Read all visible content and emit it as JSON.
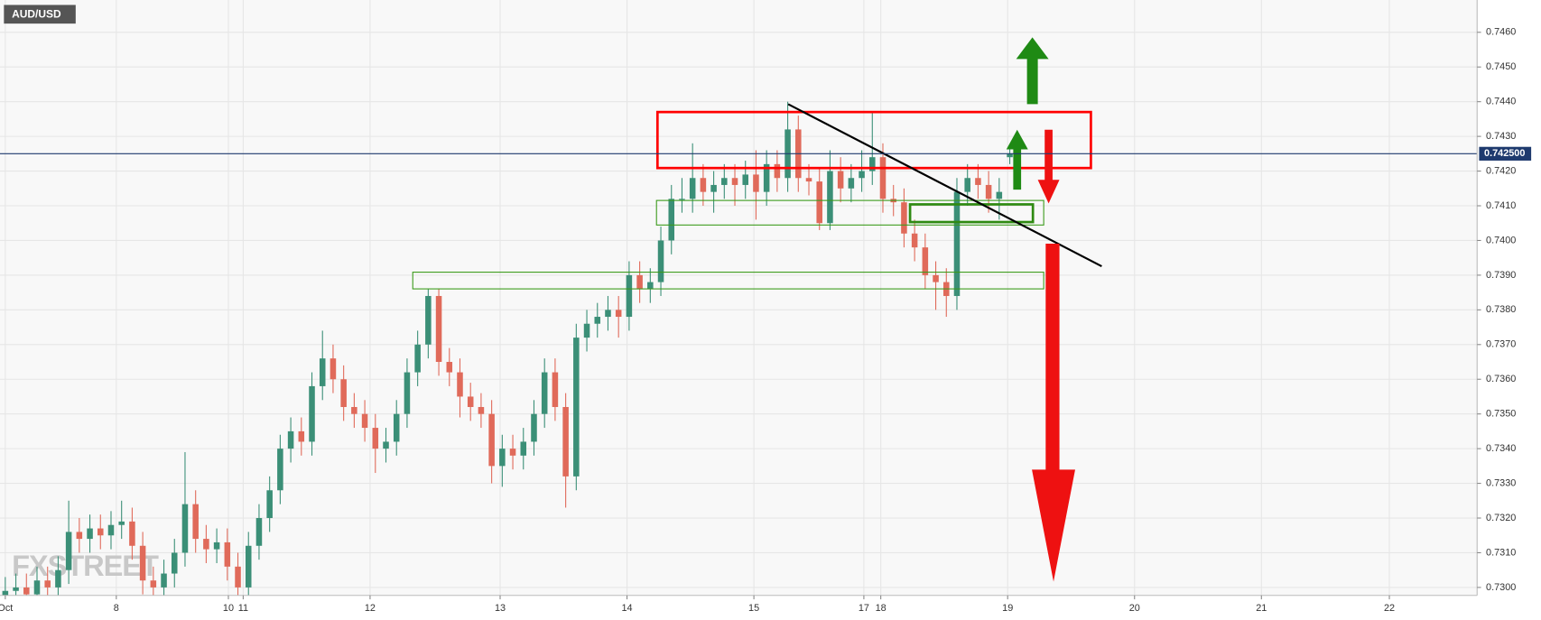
{
  "chart_data": {
    "type": "candlestick",
    "title": "AUD/USD",
    "watermark": "FXSTREET",
    "up_color": "#3b8f77",
    "down_color": "#e06a5a",
    "grid": true,
    "last_price": {
      "value": 0.7425,
      "label": "0.742500"
    },
    "x": [
      0,
      1,
      2,
      3,
      4,
      5,
      6,
      7,
      8,
      9,
      10,
      11,
      12,
      13,
      14,
      15,
      16,
      17,
      18,
      19,
      20,
      21,
      22,
      23,
      24,
      25,
      26,
      27,
      28,
      29,
      30,
      31,
      32,
      33,
      34,
      35,
      36,
      37,
      38,
      39,
      40,
      41,
      42,
      43,
      44,
      45,
      46,
      47,
      48,
      49,
      50,
      51,
      52,
      53,
      54,
      55,
      56,
      57,
      58,
      59,
      60,
      61,
      62,
      63,
      64,
      65,
      66,
      67,
      68,
      69,
      70,
      71,
      72,
      73,
      74,
      75,
      76,
      77,
      78,
      79,
      80,
      81,
      82,
      83,
      84,
      85,
      86,
      87,
      88,
      89,
      90,
      91,
      92,
      93,
      94,
      95
    ],
    "open": [
      0.7297,
      0.7299,
      0.73,
      0.7298,
      0.7302,
      0.73,
      0.7305,
      0.7316,
      0.7314,
      0.7317,
      0.7315,
      0.7318,
      0.7319,
      0.7312,
      0.7302,
      0.73,
      0.7304,
      0.731,
      0.7324,
      0.7314,
      0.7311,
      0.7313,
      0.7306,
      0.73,
      0.7312,
      0.732,
      0.7328,
      0.734,
      0.7345,
      0.7342,
      0.7358,
      0.7366,
      0.736,
      0.7352,
      0.735,
      0.7346,
      0.734,
      0.7342,
      0.735,
      0.7362,
      0.737,
      0.7384,
      0.7365,
      0.7362,
      0.7355,
      0.7352,
      0.735,
      0.7335,
      0.734,
      0.7338,
      0.7342,
      0.735,
      0.7362,
      0.7352,
      0.7332,
      0.7372,
      0.7376,
      0.7378,
      0.738,
      0.7378,
      0.739,
      0.7386,
      0.7388,
      0.74,
      0.7412,
      0.7412,
      0.7418,
      0.7414,
      0.7416,
      0.7418,
      0.7416,
      0.7419,
      0.7414,
      0.7422,
      0.7418,
      0.7432,
      0.7418,
      0.7417,
      0.7405,
      0.742,
      0.7415,
      0.7418,
      0.742,
      0.7424,
      0.7412,
      0.7411,
      0.7402,
      0.7398,
      0.739,
      0.7388,
      0.7384,
      0.7414,
      0.7418,
      0.7416,
      0.7412,
      0.7424
    ],
    "high": [
      0.7303,
      0.7304,
      0.7304,
      0.7306,
      0.7306,
      0.7309,
      0.7325,
      0.732,
      0.7321,
      0.7321,
      0.7322,
      0.7325,
      0.7323,
      0.7316,
      0.7306,
      0.7308,
      0.7314,
      0.7339,
      0.7328,
      0.7318,
      0.7317,
      0.7317,
      0.731,
      0.7316,
      0.7324,
      0.7332,
      0.7344,
      0.7349,
      0.7349,
      0.7362,
      0.7374,
      0.737,
      0.7364,
      0.7356,
      0.7354,
      0.735,
      0.7346,
      0.7354,
      0.7366,
      0.7374,
      0.7386,
      0.7386,
      0.7369,
      0.7366,
      0.7359,
      0.7356,
      0.7354,
      0.7344,
      0.7344,
      0.7346,
      0.7354,
      0.7366,
      0.7366,
      0.7356,
      0.7376,
      0.738,
      0.7382,
      0.7384,
      0.7384,
      0.7394,
      0.7394,
      0.7392,
      0.7404,
      0.7416,
      0.7418,
      0.7428,
      0.7422,
      0.742,
      0.7422,
      0.7422,
      0.7423,
      0.7426,
      0.7426,
      0.7426,
      0.744,
      0.7436,
      0.7422,
      0.7421,
      0.7426,
      0.7424,
      0.7422,
      0.7426,
      0.7437,
      0.7428,
      0.7416,
      0.7415,
      0.7406,
      0.7402,
      0.7394,
      0.7392,
      0.7418,
      0.7422,
      0.7422,
      0.742,
      0.7418,
      0.7427
    ],
    "low": [
      0.7293,
      0.7295,
      0.7294,
      0.7294,
      0.7296,
      0.7296,
      0.7301,
      0.731,
      0.731,
      0.7311,
      0.7311,
      0.7314,
      0.7308,
      0.7298,
      0.7296,
      0.7296,
      0.73,
      0.7306,
      0.731,
      0.7307,
      0.7307,
      0.7302,
      0.7296,
      0.7296,
      0.7308,
      0.7316,
      0.7324,
      0.7336,
      0.7338,
      0.7338,
      0.7354,
      0.7356,
      0.7348,
      0.7346,
      0.7342,
      0.7333,
      0.7336,
      0.7338,
      0.7346,
      0.7358,
      0.7366,
      0.7361,
      0.7358,
      0.7349,
      0.7348,
      0.7346,
      0.733,
      0.7329,
      0.7334,
      0.7334,
      0.7338,
      0.7346,
      0.7348,
      0.7323,
      0.7328,
      0.7368,
      0.7372,
      0.7374,
      0.7372,
      0.7374,
      0.7382,
      0.7382,
      0.7384,
      0.7396,
      0.7408,
      0.7408,
      0.741,
      0.7408,
      0.7412,
      0.741,
      0.7412,
      0.7406,
      0.741,
      0.7414,
      0.7414,
      0.7414,
      0.7413,
      0.7403,
      0.7403,
      0.7411,
      0.7411,
      0.7414,
      0.7416,
      0.7408,
      0.7407,
      0.7398,
      0.7394,
      0.7386,
      0.738,
      0.7378,
      0.738,
      0.741,
      0.7412,
      0.7408,
      0.7406,
      0.7422
    ],
    "close": [
      0.7299,
      0.73,
      0.7298,
      0.7302,
      0.73,
      0.7305,
      0.7316,
      0.7314,
      0.7317,
      0.7315,
      0.7318,
      0.7319,
      0.7312,
      0.7302,
      0.73,
      0.7304,
      0.731,
      0.7324,
      0.7314,
      0.7311,
      0.7313,
      0.7306,
      0.73,
      0.7312,
      0.732,
      0.7328,
      0.734,
      0.7345,
      0.7342,
      0.7358,
      0.7366,
      0.736,
      0.7352,
      0.735,
      0.7346,
      0.734,
      0.7342,
      0.735,
      0.7362,
      0.737,
      0.7384,
      0.7365,
      0.7362,
      0.7355,
      0.7352,
      0.735,
      0.7335,
      0.734,
      0.7338,
      0.7342,
      0.735,
      0.7362,
      0.7352,
      0.7332,
      0.7372,
      0.7376,
      0.7378,
      0.738,
      0.7378,
      0.739,
      0.7386,
      0.7388,
      0.74,
      0.7412,
      0.7412,
      0.7418,
      0.7414,
      0.7416,
      0.7418,
      0.7416,
      0.7419,
      0.7414,
      0.7422,
      0.7418,
      0.7432,
      0.7418,
      0.7417,
      0.7405,
      0.742,
      0.7415,
      0.7418,
      0.742,
      0.7424,
      0.7412,
      0.7411,
      0.7402,
      0.7398,
      0.739,
      0.7388,
      0.7384,
      0.7414,
      0.7418,
      0.7416,
      0.7412,
      0.7414,
      0.7425
    ],
    "xlim": [
      -0.5,
      139.2
    ],
    "xticks": [
      {
        "value": 0,
        "label": "Oct"
      },
      {
        "value": 10.5,
        "label": "8"
      },
      {
        "value": 21.1,
        "label": "10"
      },
      {
        "value": 22.5,
        "label": "11"
      },
      {
        "value": 34.5,
        "label": "12"
      },
      {
        "value": 46.8,
        "label": "13"
      },
      {
        "value": 58.8,
        "label": "14"
      },
      {
        "value": 70.8,
        "label": "15"
      },
      {
        "value": 81.2,
        "label": "17"
      },
      {
        "value": 82.8,
        "label": "18"
      },
      {
        "value": 94.8,
        "label": "19"
      },
      {
        "value": 106.8,
        "label": "20"
      },
      {
        "value": 118.8,
        "label": "21"
      },
      {
        "value": 130.9,
        "label": "22"
      }
    ],
    "ylim": [
      0.72977,
      0.74693
    ],
    "yticks": [
      {
        "value": 0.73,
        "label": "0.7300"
      },
      {
        "value": 0.731,
        "label": "0.7310"
      },
      {
        "value": 0.732,
        "label": "0.7320"
      },
      {
        "value": 0.733,
        "label": "0.7330"
      },
      {
        "value": 0.734,
        "label": "0.7340"
      },
      {
        "value": 0.735,
        "label": "0.7350"
      },
      {
        "value": 0.736,
        "label": "0.7360"
      },
      {
        "value": 0.737,
        "label": "0.7370"
      },
      {
        "value": 0.738,
        "label": "0.7380"
      },
      {
        "value": 0.739,
        "label": "0.7390"
      },
      {
        "value": 0.74,
        "label": "0.7400"
      },
      {
        "value": 0.741,
        "label": "0.7410"
      },
      {
        "value": 0.742,
        "label": "0.7420"
      },
      {
        "value": 0.743,
        "label": "0.7430"
      },
      {
        "value": 0.744,
        "label": "0.7440"
      },
      {
        "value": 0.745,
        "label": "0.7450"
      },
      {
        "value": 0.746,
        "label": "0.7460"
      }
    ]
  }
}
